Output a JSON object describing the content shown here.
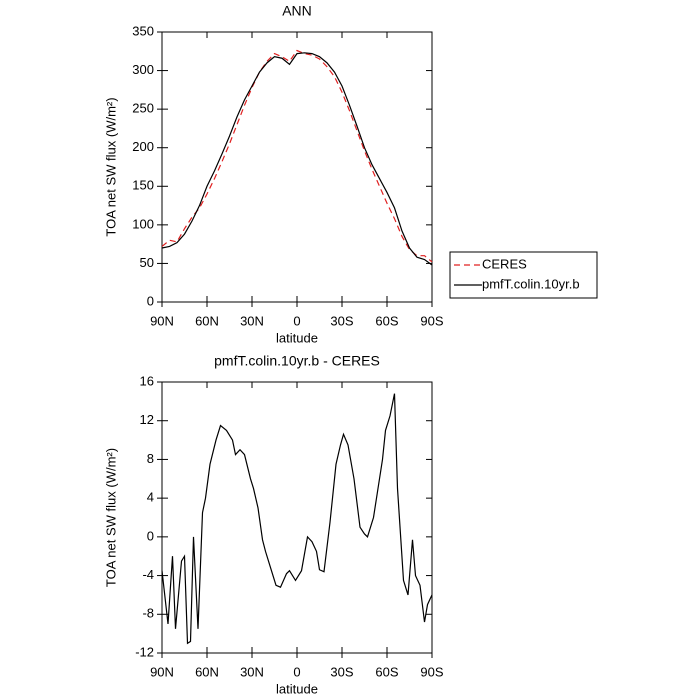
{
  "chart_data": [
    {
      "type": "line",
      "title": "ANN",
      "x_label": "latitude",
      "y_label": "TOA net SW flux (W/m²)",
      "x": [
        90,
        85,
        80,
        75,
        70,
        65,
        60,
        55,
        50,
        45,
        40,
        35,
        30,
        25,
        20,
        15,
        10,
        5,
        0,
        -5,
        -10,
        -15,
        -20,
        -25,
        -30,
        -35,
        -40,
        -45,
        -50,
        -55,
        -60,
        -65,
        -70,
        -75,
        -80,
        -85,
        -90
      ],
      "series": [
        {
          "name": "CERES",
          "color": "#e02020",
          "style": "dashed",
          "values": [
            72,
            80,
            78,
            95,
            110,
            122,
            140,
            160,
            182,
            205,
            230,
            255,
            278,
            298,
            312,
            322,
            318,
            312,
            326,
            322,
            320,
            315,
            305,
            292,
            272,
            248,
            222,
            196,
            172,
            150,
            128,
            108,
            85,
            68,
            60,
            60,
            52
          ]
        },
        {
          "name": "pmfT.colin.10yr.b",
          "color": "#000000",
          "style": "solid",
          "values": [
            70,
            72,
            77,
            88,
            105,
            125,
            150,
            170,
            192,
            215,
            240,
            262,
            280,
            298,
            310,
            318,
            316,
            308,
            322,
            323,
            322,
            318,
            310,
            298,
            280,
            255,
            228,
            200,
            178,
            160,
            142,
            122,
            92,
            70,
            58,
            55,
            48
          ]
        }
      ],
      "xlim": [
        90,
        -90
      ],
      "xticks": [
        {
          "value": 90,
          "label": "90N"
        },
        {
          "value": 60,
          "label": "60N"
        },
        {
          "value": 30,
          "label": "30N"
        },
        0,
        {
          "value": -30,
          "label": "30S"
        },
        {
          "value": -60,
          "label": "60S"
        },
        {
          "value": -90,
          "label": "90S"
        }
      ],
      "ylim": [
        0,
        350
      ],
      "yticks": [
        0,
        50,
        100,
        150,
        200,
        250,
        300,
        350
      ],
      "legend": "right"
    },
    {
      "type": "line",
      "title": "pmfT.colin.10yr.b - CERES",
      "x_label": "latitude",
      "y_label": "TOA net SW flux (W/m²)",
      "x": [
        90,
        86,
        83,
        81,
        77,
        75,
        73,
        71,
        69,
        66,
        63,
        61,
        58,
        54,
        51,
        47,
        43,
        41,
        38,
        35,
        31,
        29,
        26,
        23,
        21,
        18,
        14,
        11,
        7,
        5,
        1,
        -3,
        -7,
        -10,
        -13,
        -15,
        -18,
        -22,
        -26,
        -29,
        -31,
        -34,
        -38,
        -42,
        -45,
        -47,
        -51,
        -54,
        -57,
        -59,
        -62,
        -65,
        -67,
        -71,
        -74,
        -77,
        -79,
        -82,
        -85,
        -87,
        -90
      ],
      "color": "#000000",
      "values": [
        -3.5,
        -9,
        -2,
        -9.5,
        -2.5,
        -2,
        -11,
        -10.8,
        0,
        -9.5,
        2.5,
        4,
        7.5,
        10,
        11.5,
        11,
        10,
        8.5,
        9,
        8.5,
        6,
        5,
        3,
        -0.3,
        -1.5,
        -3,
        -5,
        -5.2,
        -3.8,
        -3.5,
        -4.5,
        -3.5,
        0,
        -0.5,
        -1.5,
        -3.4,
        -3.6,
        1.5,
        7.5,
        9.5,
        10.6,
        9.5,
        6,
        1,
        0.3,
        0,
        2,
        5,
        8,
        11,
        12.5,
        14.8,
        5,
        -4.5,
        -6,
        -0.3,
        -4,
        -5,
        -8.8,
        -7,
        -6
      ],
      "xlim": [
        90,
        -90
      ],
      "xticks": [
        {
          "value": 90,
          "label": "90N"
        },
        {
          "value": 60,
          "label": "60N"
        },
        {
          "value": 30,
          "label": "30N"
        },
        0,
        {
          "value": -30,
          "label": "30S"
        },
        {
          "value": -60,
          "label": "60S"
        },
        {
          "value": -90,
          "label": "90S"
        }
      ],
      "ylim": [
        -12,
        16
      ],
      "yticks": [
        -12,
        -8,
        -4,
        0,
        4,
        8,
        12,
        16
      ]
    }
  ]
}
